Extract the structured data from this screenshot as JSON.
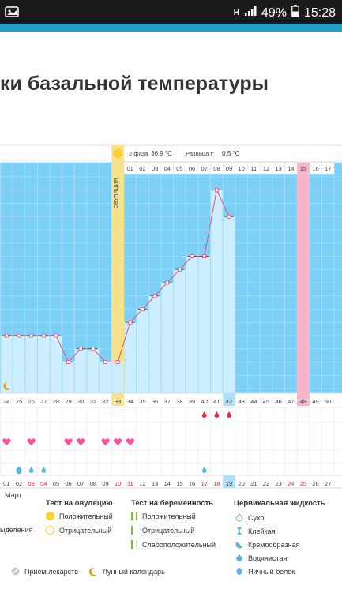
{
  "status_bar": {
    "network": "H",
    "battery": "49%",
    "time": "15:28"
  },
  "page": {
    "title": "ки базальной температуры"
  },
  "chart": {
    "phase_label": "2 фаза",
    "phase_value": "36.9 °C",
    "diff_label": "Разница t°",
    "diff_value": "0.5 °C",
    "ovulation_label": "ОВУЛЯЦИЯ",
    "month_label": "Март"
  },
  "chart_data": {
    "type": "line",
    "cycle_days": [
      "01",
      "02",
      "03",
      "04",
      "05",
      "06",
      "07",
      "08",
      "09",
      "10",
      "11",
      "12",
      "13",
      "14",
      "15",
      "16",
      "17"
    ],
    "cycle_days_highlight": "15",
    "day_numbers": [
      "24",
      "25",
      "26",
      "27",
      "28",
      "29",
      "30",
      "31",
      "32",
      "33",
      "34",
      "35",
      "36",
      "37",
      "38",
      "39",
      "40",
      "41",
      "42",
      "43",
      "44",
      "45",
      "46",
      "47",
      "48",
      "49",
      "50"
    ],
    "day_number_current": "42",
    "day_number_highlight": "48",
    "dates": [
      "01",
      "02",
      "03",
      "04",
      "05",
      "06",
      "07",
      "08",
      "09",
      "10",
      "11",
      "12",
      "13",
      "14",
      "15",
      "16",
      "17",
      "18",
      "19",
      "20",
      "21",
      "22",
      "23",
      "24",
      "25",
      "26",
      "27"
    ],
    "dates_red": [
      "03",
      "04",
      "10",
      "11",
      "17",
      "18",
      "24",
      "25"
    ],
    "date_current": "19",
    "temperature_points": [
      {
        "day": "24",
        "level": 4
      },
      {
        "day": "25",
        "level": 4
      },
      {
        "day": "26",
        "level": 4
      },
      {
        "day": "27",
        "level": 4
      },
      {
        "day": "28",
        "level": 4
      },
      {
        "day": "29",
        "level": 2
      },
      {
        "day": "30",
        "level": 3
      },
      {
        "day": "31",
        "level": 3
      },
      {
        "day": "32",
        "level": 2
      },
      {
        "day": "33",
        "level": 2
      },
      {
        "day": "34",
        "level": 5
      },
      {
        "day": "35",
        "level": 6
      },
      {
        "day": "36",
        "level": 7
      },
      {
        "day": "37",
        "level": 8
      },
      {
        "day": "38",
        "level": 9
      },
      {
        "day": "39",
        "level": 10
      },
      {
        "day": "40",
        "level": 10
      },
      {
        "day": "41",
        "level": 15
      },
      {
        "day": "42",
        "level": 13
      }
    ],
    "ovulation_day": "33",
    "blood_days": [
      "40",
      "41",
      "42"
    ],
    "heart_days": [
      "24",
      "26",
      "29",
      "30",
      "32",
      "33",
      "34"
    ],
    "fluid_days": [
      "25",
      "26",
      "27",
      "40"
    ],
    "moon_day": "24"
  },
  "legend": {
    "ovulation_test": {
      "title": "Тест на овуляцию",
      "positive": "Положительный",
      "negative": "Отрицательный"
    },
    "pregnancy_test": {
      "title": "Тест на беременность",
      "positive": "Положительный",
      "negative": "Отрицательный",
      "weak": "Слабоположительный"
    },
    "cervical": {
      "title": "Цервикальная жидкость",
      "dry": "Сухо",
      "sticky": "Клейкая",
      "creamy": "Кремообразная",
      "watery": "Водянистая",
      "eggwhite": "Яичный белок"
    },
    "discharge_partial": "ыделения",
    "medicine": "Прием лекарств",
    "lunar": "Лунный календарь"
  },
  "colors": {
    "chart_bg": "#7ccff5",
    "bar_fill": "#cdeefe",
    "line": "#e2507a",
    "ovulation": "#f7e28a",
    "highlight_day": "#f6b3c7",
    "heart": "#ff4fa0",
    "blood": "#e8283c",
    "drop": "#5fb3e6",
    "red_text": "#e8283c"
  }
}
